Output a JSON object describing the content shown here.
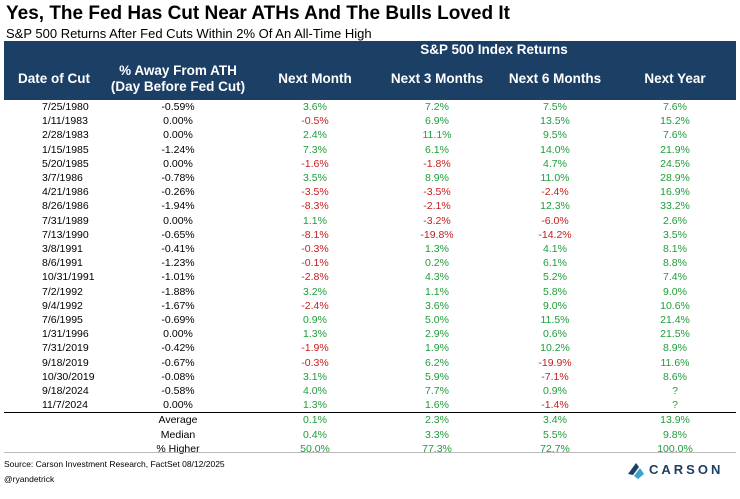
{
  "title": "Yes, The Fed Has Cut Near ATHs And The Bulls Loved It",
  "subtitle": "S&P 500 Returns After Fed Cuts Within 2% Of An All-Time High",
  "chart_data": {
    "type": "table",
    "group_header": "S&P 500 Index Returns",
    "columns": [
      "Date of Cut",
      "% Away From ATH (Day Before Fed Cut)",
      "Next Month",
      "Next 3 Months",
      "Next 6 Months",
      "Next Year"
    ],
    "column_lines": {
      "date": "Date of Cut",
      "ath_line1": "% Away From ATH",
      "ath_line2": "(Day Before Fed Cut)"
    },
    "rows": [
      [
        "7/25/1980",
        "-0.59%",
        "3.6%",
        "7.2%",
        "7.5%",
        "7.6%"
      ],
      [
        "1/11/1983",
        "0.00%",
        "-0.5%",
        "6.9%",
        "13.5%",
        "15.2%"
      ],
      [
        "2/28/1983",
        "0.00%",
        "2.4%",
        "11.1%",
        "9.5%",
        "7.6%"
      ],
      [
        "1/15/1985",
        "-1.24%",
        "7.3%",
        "6.1%",
        "14.0%",
        "21.9%"
      ],
      [
        "5/20/1985",
        "0.00%",
        "-1.6%",
        "-1.8%",
        "4.7%",
        "24.5%"
      ],
      [
        "3/7/1986",
        "-0.78%",
        "3.5%",
        "8.9%",
        "11.0%",
        "28.9%"
      ],
      [
        "4/21/1986",
        "-0.26%",
        "-3.5%",
        "-3.5%",
        "-2.4%",
        "16.9%"
      ],
      [
        "8/26/1986",
        "-1.94%",
        "-8.3%",
        "-2.1%",
        "12.3%",
        "33.2%"
      ],
      [
        "7/31/1989",
        "0.00%",
        "1.1%",
        "-3.2%",
        "-6.0%",
        "2.6%"
      ],
      [
        "7/13/1990",
        "-0.65%",
        "-8.1%",
        "-19.8%",
        "-14.2%",
        "3.5%"
      ],
      [
        "3/8/1991",
        "-0.41%",
        "-0.3%",
        "1.3%",
        "4.1%",
        "8.1%"
      ],
      [
        "8/6/1991",
        "-1.23%",
        "-0.1%",
        "0.2%",
        "6.1%",
        "8.8%"
      ],
      [
        "10/31/1991",
        "-1.01%",
        "-2.8%",
        "4.3%",
        "5.2%",
        "7.4%"
      ],
      [
        "7/2/1992",
        "-1.88%",
        "3.2%",
        "1.1%",
        "5.8%",
        "9.0%"
      ],
      [
        "9/4/1992",
        "-1.67%",
        "-2.4%",
        "3.6%",
        "9.0%",
        "10.6%"
      ],
      [
        "7/6/1995",
        "-0.69%",
        "0.9%",
        "5.0%",
        "11.5%",
        "21.4%"
      ],
      [
        "1/31/1996",
        "0.00%",
        "1.3%",
        "2.9%",
        "0.6%",
        "21.5%"
      ],
      [
        "7/31/2019",
        "-0.42%",
        "-1.9%",
        "1.9%",
        "10.2%",
        "8.9%"
      ],
      [
        "9/18/2019",
        "-0.67%",
        "-0.3%",
        "6.2%",
        "-19.9%",
        "11.6%"
      ],
      [
        "10/30/2019",
        "-0.08%",
        "3.1%",
        "5.9%",
        "-7.1%",
        "8.6%"
      ],
      [
        "9/18/2024",
        "-0.58%",
        "4.0%",
        "7.7%",
        "0.9%",
        "?"
      ],
      [
        "11/7/2024",
        "0.00%",
        "1.3%",
        "1.6%",
        "-1.4%",
        "?"
      ]
    ],
    "summary": [
      {
        "label": "Average",
        "values": [
          "0.1%",
          "2.3%",
          "3.4%",
          "13.9%"
        ]
      },
      {
        "label": "Median",
        "values": [
          "0.4%",
          "3.3%",
          "5.5%",
          "9.8%"
        ]
      },
      {
        "label": "% Higher",
        "values": [
          "50.0%",
          "77.3%",
          "72.7%",
          "100.0%"
        ]
      }
    ]
  },
  "colors": {
    "header_bg": "#1c3f66",
    "positive": "#1e9d3a",
    "negative": "#c81d1d",
    "logo_blue": "#1c3f66",
    "logo_teal": "#3aa3c9"
  },
  "footer": {
    "source": "Source: Carson Investment Research, FactSet 08/12/2025",
    "handle": "@ryandetrick",
    "logo_text": "CARSON"
  }
}
